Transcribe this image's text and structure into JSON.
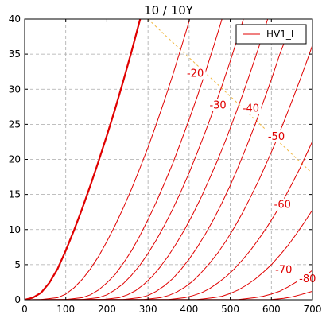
{
  "chart_data": {
    "type": "line",
    "title": "10 / 10Y",
    "xlabel": "",
    "ylabel": "",
    "xlim": [
      0,
      700
    ],
    "ylim": [
      0,
      40
    ],
    "x_ticks": [
      0,
      100,
      200,
      300,
      400,
      500,
      600,
      700
    ],
    "y_ticks": [
      0,
      5,
      10,
      15,
      20,
      25,
      30,
      35,
      40
    ],
    "grid": true,
    "legend": {
      "position": "top-right",
      "entries": [
        "HV1_I"
      ]
    },
    "colors": {
      "curves": "#e00000",
      "load_line": "#f0b840",
      "grid": "#aaaaaa"
    },
    "load_line": {
      "x": [
        300,
        700
      ],
      "y": [
        40,
        18
      ]
    },
    "series": [
      {
        "name": "HV1_I",
        "label": "",
        "bold": true,
        "points": [
          [
            0,
            0
          ],
          [
            20,
            0.3
          ],
          [
            40,
            1.0
          ],
          [
            60,
            2.4
          ],
          [
            80,
            4.4
          ],
          [
            100,
            7.0
          ],
          [
            120,
            9.9
          ],
          [
            140,
            13.0
          ],
          [
            160,
            16.3
          ],
          [
            180,
            19.8
          ],
          [
            200,
            23.4
          ],
          [
            220,
            27.2
          ],
          [
            240,
            31.2
          ],
          [
            260,
            35.4
          ],
          [
            280,
            39.8
          ],
          [
            284,
            40.7
          ]
        ]
      },
      {
        "name": "",
        "label": "-20",
        "points": [
          [
            0,
            0
          ],
          [
            40,
            0.02
          ],
          [
            80,
            0.3
          ],
          [
            100,
            0.8
          ],
          [
            120,
            1.7
          ],
          [
            140,
            2.9
          ],
          [
            160,
            4.4
          ],
          [
            180,
            6.2
          ],
          [
            200,
            8.3
          ],
          [
            220,
            10.6
          ],
          [
            240,
            13.1
          ],
          [
            260,
            15.8
          ],
          [
            280,
            18.7
          ],
          [
            300,
            21.7
          ],
          [
            320,
            25.0
          ],
          [
            340,
            28.4
          ],
          [
            360,
            32.0
          ],
          [
            380,
            35.8
          ],
          [
            400,
            39.7
          ],
          [
            402,
            40.1
          ]
        ]
      },
      {
        "name": "",
        "label": "-30",
        "points": [
          [
            0,
            0
          ],
          [
            100,
            0.02
          ],
          [
            140,
            0.3
          ],
          [
            160,
            0.7
          ],
          [
            180,
            1.4
          ],
          [
            200,
            2.4
          ],
          [
            220,
            3.6
          ],
          [
            240,
            5.2
          ],
          [
            260,
            7.0
          ],
          [
            280,
            9.1
          ],
          [
            300,
            11.4
          ],
          [
            320,
            13.9
          ],
          [
            340,
            16.6
          ],
          [
            360,
            19.4
          ],
          [
            380,
            22.5
          ],
          [
            400,
            25.7
          ],
          [
            420,
            29.0
          ],
          [
            440,
            32.5
          ],
          [
            460,
            36.2
          ],
          [
            480,
            40.0
          ]
        ]
      },
      {
        "name": "",
        "label": "-40",
        "points": [
          [
            0,
            0
          ],
          [
            140,
            0.02
          ],
          [
            180,
            0.3
          ],
          [
            200,
            0.7
          ],
          [
            220,
            1.4
          ],
          [
            240,
            2.3
          ],
          [
            260,
            3.5
          ],
          [
            280,
            4.9
          ],
          [
            300,
            6.6
          ],
          [
            320,
            8.5
          ],
          [
            340,
            10.6
          ],
          [
            360,
            12.9
          ],
          [
            380,
            15.4
          ],
          [
            400,
            18.1
          ],
          [
            420,
            21.0
          ],
          [
            440,
            24.0
          ],
          [
            460,
            27.2
          ],
          [
            480,
            30.5
          ],
          [
            500,
            34.0
          ],
          [
            520,
            37.7
          ],
          [
            532,
            40.0
          ]
        ]
      },
      {
        "name": "",
        "label": "-50",
        "points": [
          [
            0,
            0
          ],
          [
            190,
            0.02
          ],
          [
            230,
            0.3
          ],
          [
            250,
            0.7
          ],
          [
            270,
            1.3
          ],
          [
            290,
            2.2
          ],
          [
            310,
            3.3
          ],
          [
            330,
            4.7
          ],
          [
            350,
            6.3
          ],
          [
            370,
            8.1
          ],
          [
            390,
            10.1
          ],
          [
            410,
            12.3
          ],
          [
            430,
            14.7
          ],
          [
            450,
            17.3
          ],
          [
            470,
            20.0
          ],
          [
            490,
            22.9
          ],
          [
            510,
            26.0
          ],
          [
            530,
            29.2
          ],
          [
            550,
            32.6
          ],
          [
            570,
            36.1
          ],
          [
            590,
            39.8
          ],
          [
            591,
            40.0
          ]
        ]
      },
      {
        "name": "",
        "label": "-60",
        "points": [
          [
            0,
            0
          ],
          [
            240,
            0.02
          ],
          [
            280,
            0.3
          ],
          [
            300,
            0.6
          ],
          [
            320,
            1.2
          ],
          [
            340,
            2.0
          ],
          [
            360,
            3.0
          ],
          [
            380,
            4.3
          ],
          [
            400,
            5.8
          ],
          [
            420,
            7.5
          ],
          [
            440,
            9.4
          ],
          [
            460,
            11.5
          ],
          [
            480,
            13.8
          ],
          [
            500,
            16.3
          ],
          [
            520,
            19.0
          ],
          [
            540,
            21.9
          ],
          [
            560,
            24.9
          ],
          [
            580,
            28.1
          ],
          [
            600,
            31.4
          ],
          [
            620,
            34.9
          ],
          [
            640,
            38.0
          ]
        ]
      },
      {
        "name": "",
        "label": "-70",
        "points": [
          [
            0,
            0
          ],
          [
            290,
            0.02
          ],
          [
            330,
            0.3
          ],
          [
            350,
            0.6
          ],
          [
            370,
            1.1
          ],
          [
            390,
            1.8
          ],
          [
            410,
            2.7
          ],
          [
            430,
            3.9
          ],
          [
            450,
            5.2
          ],
          [
            470,
            6.7
          ],
          [
            490,
            8.4
          ],
          [
            510,
            10.3
          ],
          [
            530,
            12.4
          ],
          [
            550,
            14.7
          ],
          [
            570,
            17.1
          ],
          [
            590,
            19.7
          ],
          [
            610,
            22.4
          ],
          [
            630,
            25.3
          ],
          [
            650,
            28.3
          ],
          [
            670,
            31.4
          ],
          [
            690,
            34.6
          ],
          [
            700,
            36.3
          ]
        ]
      },
      {
        "name": "",
        "label": "-80",
        "points": [
          [
            0,
            0
          ],
          [
            350,
            0.02
          ],
          [
            390,
            0.3
          ],
          [
            410,
            0.6
          ],
          [
            430,
            1.0
          ],
          [
            450,
            1.6
          ],
          [
            470,
            2.4
          ],
          [
            490,
            3.3
          ],
          [
            510,
            4.4
          ],
          [
            530,
            5.7
          ],
          [
            550,
            7.1
          ],
          [
            570,
            8.7
          ],
          [
            590,
            10.4
          ],
          [
            610,
            12.3
          ],
          [
            630,
            14.3
          ],
          [
            650,
            16.5
          ],
          [
            670,
            18.8
          ],
          [
            690,
            21.3
          ],
          [
            700,
            22.6
          ]
        ]
      },
      {
        "name": "",
        "label": "",
        "points": [
          [
            0,
            0
          ],
          [
            420,
            0.02
          ],
          [
            460,
            0.3
          ],
          [
            480,
            0.5
          ],
          [
            500,
            0.9
          ],
          [
            520,
            1.4
          ],
          [
            540,
            2.1
          ],
          [
            560,
            2.9
          ],
          [
            580,
            3.9
          ],
          [
            600,
            5.0
          ],
          [
            620,
            6.3
          ],
          [
            640,
            7.7
          ],
          [
            660,
            9.3
          ],
          [
            680,
            11.0
          ],
          [
            700,
            12.8
          ]
        ]
      },
      {
        "name": "",
        "label": "",
        "points": [
          [
            0,
            0
          ],
          [
            520,
            0.02
          ],
          [
            560,
            0.3
          ],
          [
            580,
            0.5
          ],
          [
            600,
            0.8
          ],
          [
            620,
            1.2
          ],
          [
            640,
            1.8
          ],
          [
            660,
            2.5
          ],
          [
            680,
            3.3
          ],
          [
            700,
            4.2
          ]
        ]
      },
      {
        "name": "",
        "label": "",
        "points": [
          [
            0,
            0
          ],
          [
            600,
            0.02
          ],
          [
            630,
            0.2
          ],
          [
            650,
            0.4
          ],
          [
            670,
            0.7
          ],
          [
            700,
            1.2
          ]
        ]
      }
    ],
    "curve_labels": [
      {
        "text": "-20",
        "x": 415,
        "y": 32
      },
      {
        "text": "-30",
        "x": 470,
        "y": 27.5
      },
      {
        "text": "-40",
        "x": 550,
        "y": 27
      },
      {
        "text": "-50",
        "x": 612,
        "y": 23
      },
      {
        "text": "-60",
        "x": 627,
        "y": 13.3
      },
      {
        "text": "-70",
        "x": 630,
        "y": 4
      },
      {
        "text": "-80",
        "x": 688,
        "y": 2.7
      }
    ]
  }
}
